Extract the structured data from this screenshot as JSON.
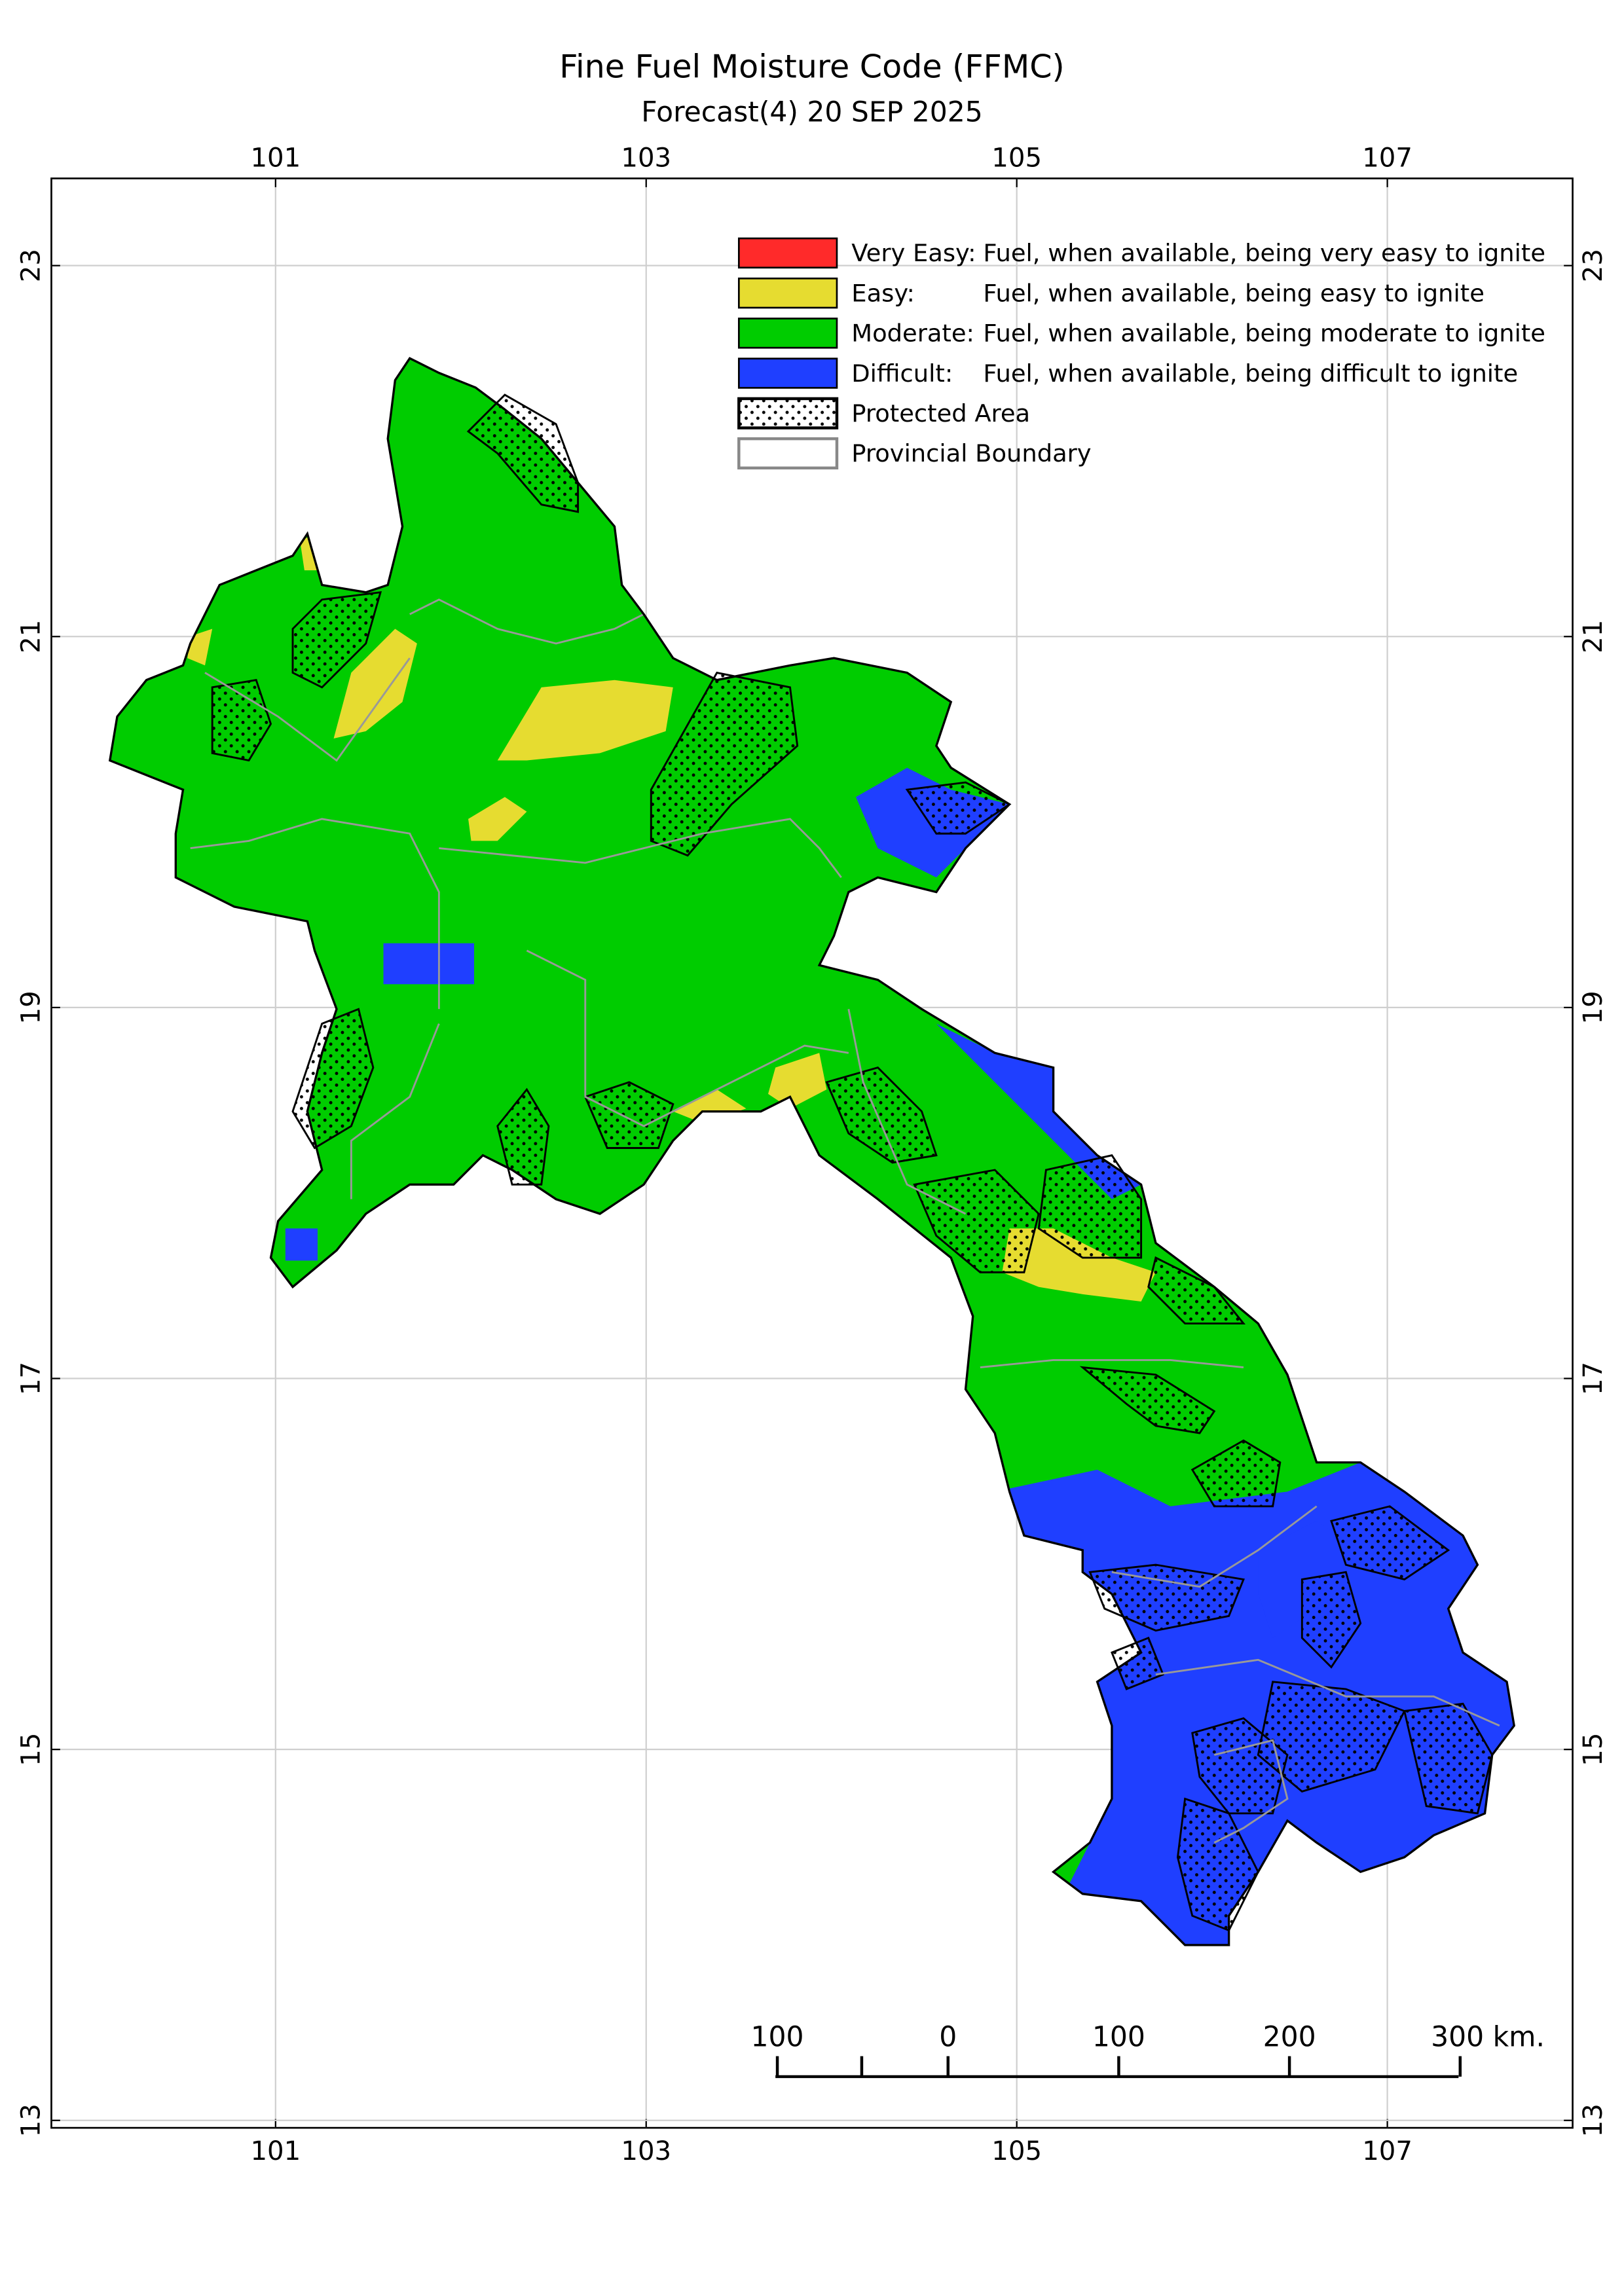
{
  "map": {
    "title": "Fine Fuel Moisture Code (FFMC)",
    "subtitle": "Forecast(4) 20 SEP 2025",
    "xlim": [
      99.79,
      108.0
    ],
    "ylim": [
      12.96,
      23.47
    ],
    "xticks": [
      101,
      103,
      105,
      107
    ],
    "yticks": [
      23,
      21,
      19,
      17,
      15,
      13
    ],
    "grid": true,
    "legend": [
      {
        "label": "Very Easy:",
        "description": "Fuel, when available, being very easy to ignite",
        "color": "#ff2a2a"
      },
      {
        "label": "Easy:",
        "description": "Fuel, when available, being easy to ignite",
        "color": "#e6dc30"
      },
      {
        "label": "Moderate:",
        "description": "Fuel, when available, being moderate to ignite",
        "color": "#00cc00"
      },
      {
        "label": "Difficult:",
        "description": "Fuel, when available, being difficult to ignite",
        "color": "#1f3fff"
      },
      {
        "label": "Protected Area"
      },
      {
        "label": "Provincial Boundary"
      }
    ],
    "scale_bar": {
      "ticks": [
        {
          "value": -100,
          "label": "100"
        },
        0,
        100,
        200,
        {
          "value": 300,
          "label": "300 km."
        }
      ]
    }
  }
}
